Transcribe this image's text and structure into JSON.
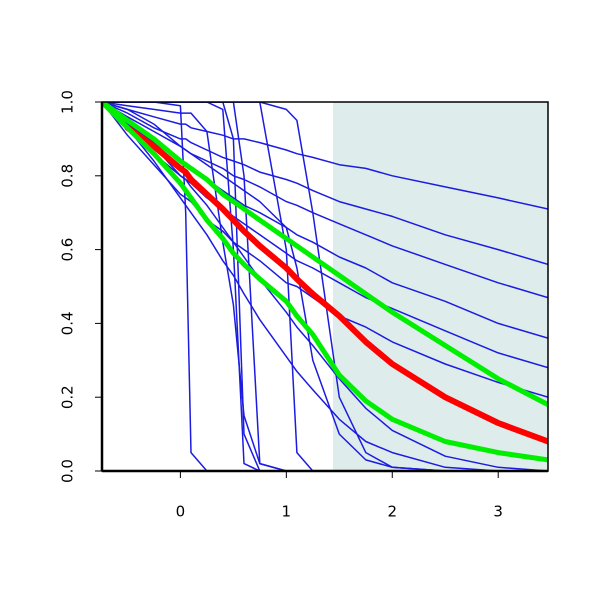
{
  "chart_data": {
    "type": "line",
    "x": [
      -0.74,
      -0.5,
      -0.25,
      0,
      0.05,
      0.1,
      0.25,
      0.4,
      0.5,
      0.6,
      0.75,
      1,
      1.1,
      1.25,
      1.5,
      1.75,
      2,
      2.5,
      3,
      3.47
    ],
    "xlim": [
      -0.74,
      3.47
    ],
    "ylim": [
      0,
      1
    ],
    "xticks": [
      0,
      1,
      2,
      3
    ],
    "yticks": [
      {
        "value": 0,
        "label": "0.0"
      },
      0.2,
      0.4,
      0.6,
      0.8,
      {
        "value": 1,
        "label": "1.0"
      }
    ],
    "shaded_xrange": [
      1.44,
      3.47
    ],
    "shade_color": "#deecec",
    "series": [
      {
        "color": "#1c1ce0",
        "line_width": 1.5,
        "values": [
          1,
          0.98,
          0.96,
          0.94,
          0.94,
          0.93,
          0.92,
          0.91,
          0.9,
          0.9,
          0.89,
          0.87,
          0.86,
          0.85,
          0.83,
          0.82,
          0.8,
          0.77,
          0.74,
          0.71
        ]
      },
      {
        "color": "#1c1ce0",
        "line_width": 1.5,
        "values": [
          1,
          0.97,
          0.93,
          0.9,
          0.9,
          0.89,
          0.87,
          0.85,
          0.84,
          0.83,
          0.81,
          0.79,
          0.78,
          0.76,
          0.73,
          0.71,
          0.69,
          0.64,
          0.6,
          0.56
        ]
      },
      {
        "color": "#1c1ce0",
        "line_width": 1.5,
        "values": [
          1,
          0.96,
          0.92,
          0.88,
          0.87,
          0.86,
          0.84,
          0.82,
          0.8,
          0.79,
          0.77,
          0.73,
          0.72,
          0.7,
          0.67,
          0.64,
          0.61,
          0.56,
          0.51,
          0.47
        ]
      },
      {
        "color": "#1c1ce0",
        "line_width": 1.5,
        "values": [
          1,
          0.94,
          0.89,
          0.84,
          0.83,
          0.82,
          0.79,
          0.76,
          0.74,
          0.72,
          0.7,
          0.66,
          0.64,
          0.62,
          0.58,
          0.55,
          0.51,
          0.46,
          0.4,
          0.36
        ]
      },
      {
        "color": "#1c1ce0",
        "line_width": 1.5,
        "values": [
          1,
          0.93,
          0.86,
          0.8,
          0.79,
          0.78,
          0.74,
          0.71,
          0.69,
          0.67,
          0.64,
          0.59,
          0.57,
          0.55,
          0.51,
          0.47,
          0.44,
          0.38,
          0.32,
          0.28
        ]
      },
      {
        "color": "#1c1ce0",
        "line_width": 1.5,
        "values": [
          1,
          0.91,
          0.83,
          0.75,
          0.74,
          0.73,
          0.68,
          0.65,
          0.62,
          0.6,
          0.57,
          0.51,
          0.5,
          0.47,
          0.42,
          0.39,
          0.35,
          0.29,
          0.24,
          0.2
        ]
      },
      {
        "color": "#1c1ce0",
        "line_width": 1.5,
        "values": [
          1,
          0.95,
          0.88,
          0.8,
          0.79,
          0.77,
          0.72,
          0.66,
          0.62,
          0.58,
          0.52,
          0.43,
          0.39,
          0.34,
          0.25,
          0.17,
          0.11,
          0.04,
          0.01,
          0
        ]
      },
      {
        "color": "#1c1ce0",
        "line_width": 1.5,
        "values": [
          1,
          0.93,
          0.84,
          0.74,
          0.72,
          0.7,
          0.64,
          0.57,
          0.53,
          0.48,
          0.41,
          0.31,
          0.27,
          0.22,
          0.14,
          0.08,
          0.05,
          0.01,
          0,
          0
        ]
      },
      {
        "color": "#1c1ce0",
        "line_width": 1.5,
        "values": [
          1,
          1,
          1,
          0.99,
          0.7,
          0.05,
          0,
          0,
          0,
          0,
          0,
          0,
          0,
          0,
          0,
          0,
          0,
          0,
          0,
          0
        ]
      },
      {
        "color": "#1c1ce0",
        "line_width": 1.5,
        "values": [
          1,
          1,
          1,
          1,
          1,
          1,
          1,
          0.98,
          0.6,
          0.02,
          0,
          0,
          0,
          0,
          0,
          0,
          0,
          0,
          0,
          0
        ]
      },
      {
        "color": "#1c1ce0",
        "line_width": 1.5,
        "values": [
          1,
          1,
          1,
          1,
          1,
          1,
          1,
          1,
          0.9,
          0.1,
          0,
          0,
          0,
          0,
          0,
          0,
          0,
          0,
          0,
          0
        ]
      },
      {
        "color": "#1c1ce0",
        "line_width": 1.5,
        "values": [
          1,
          1,
          1,
          1,
          1,
          1,
          1,
          1,
          1,
          0.8,
          0.02,
          0,
          0,
          0,
          0,
          0,
          0,
          0,
          0,
          0
        ]
      },
      {
        "color": "#1c1ce0",
        "line_width": 1.5,
        "values": [
          1,
          1,
          1,
          1,
          1,
          1,
          1,
          1,
          1,
          1,
          1,
          0.6,
          0.05,
          0,
          0,
          0,
          0,
          0,
          0,
          0
        ]
      },
      {
        "color": "#1c1ce0",
        "line_width": 1.5,
        "values": [
          1,
          1,
          1,
          1,
          1,
          1,
          1,
          1,
          1,
          1,
          1,
          0.98,
          0.95,
          0.7,
          0.2,
          0.05,
          0.01,
          0,
          0,
          0
        ]
      },
      {
        "color": "#1c1ce0",
        "line_width": 1.5,
        "values": [
          1,
          0.99,
          0.98,
          0.97,
          0.97,
          0.97,
          0.92,
          0.62,
          0.45,
          0.15,
          0.02,
          0,
          0,
          0,
          0,
          0,
          0,
          0,
          0,
          0
        ]
      },
      {
        "color": "#1c1ce0",
        "line_width": 1.5,
        "values": [
          1,
          0.98,
          0.94,
          0.88,
          0.87,
          0.86,
          0.83,
          0.8,
          0.78,
          0.76,
          0.73,
          0.66,
          0.55,
          0.3,
          0.1,
          0.03,
          0.01,
          0,
          0,
          0
        ]
      },
      {
        "color": "#ff0000",
        "line_width": 6,
        "values": [
          null,
          0.93,
          0.88,
          0.82,
          0.81,
          0.79,
          0.75,
          0.71,
          0.68,
          0.65,
          0.61,
          0.55,
          0.52,
          0.48,
          0.42,
          0.35,
          0.29,
          0.2,
          0.13,
          0.08
        ]
      },
      {
        "color": "#00ee00",
        "line_width": 5,
        "values": [
          1,
          0.95,
          0.9,
          0.84,
          0.83,
          0.82,
          0.79,
          0.75,
          0.73,
          0.71,
          0.68,
          0.63,
          0.61,
          0.58,
          0.53,
          0.48,
          0.43,
          0.34,
          0.25,
          0.18
        ]
      },
      {
        "color": "#00ee00",
        "line_width": 5,
        "values": [
          1,
          0.93,
          0.86,
          0.78,
          0.76,
          0.74,
          0.68,
          0.63,
          0.59,
          0.56,
          0.52,
          0.46,
          0.42,
          0.37,
          0.26,
          0.19,
          0.14,
          0.08,
          0.05,
          0.03
        ]
      }
    ]
  }
}
